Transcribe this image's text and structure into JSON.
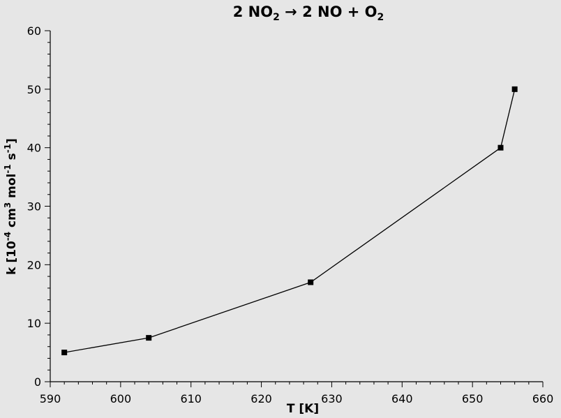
{
  "chart_data": {
    "type": "line",
    "title": {
      "part1": "2 NO",
      "sub1": "2",
      "part2": " → 2 NO + O",
      "sub2": "2"
    },
    "xlabel": "T [K]",
    "ylabel": {
      "p1": "k [10",
      "s1": "-4",
      "p2": " cm",
      "s2": "3",
      "p3": " mol",
      "s3": "-1",
      "p4": " s",
      "s4": "-1",
      "p5": "]"
    },
    "xlim": [
      590,
      660
    ],
    "ylim": [
      0,
      60
    ],
    "x_ticks": [
      "590",
      "600",
      "610",
      "620",
      "630",
      "640",
      "650",
      "660"
    ],
    "y_ticks": [
      "0",
      "10",
      "20",
      "30",
      "40",
      "50",
      "60"
    ],
    "grid": false,
    "series": [
      {
        "marker": "square",
        "x": [
          592,
          604,
          627,
          654,
          656
        ],
        "y": [
          5,
          7.5,
          17,
          40,
          50
        ]
      }
    ],
    "colors": {
      "background": "#e6e6e6",
      "line": "#000000",
      "axis": "#000000"
    }
  }
}
